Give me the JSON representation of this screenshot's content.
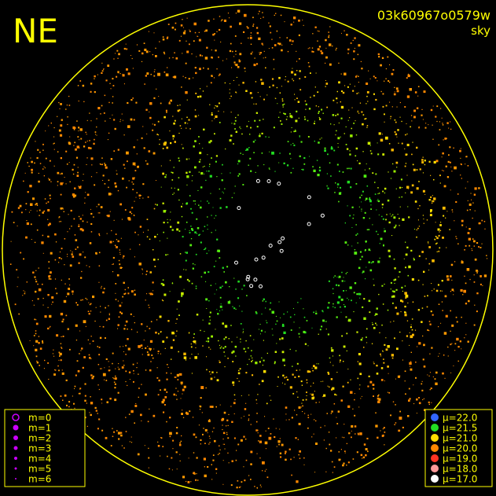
{
  "header": {
    "corner": "NE",
    "id": "03k60967o0579w",
    "mode": "sky"
  },
  "magnitude_legend": [
    "m=0",
    "m=1",
    "m=2",
    "m=3",
    "m=4",
    "m=5",
    "m=6"
  ],
  "brightness_legend": [
    "μ=22.0",
    "μ=21.5",
    "μ=21.0",
    "μ=20.0",
    "μ=19.0",
    "μ=18.0",
    "μ=17.0"
  ]
}
